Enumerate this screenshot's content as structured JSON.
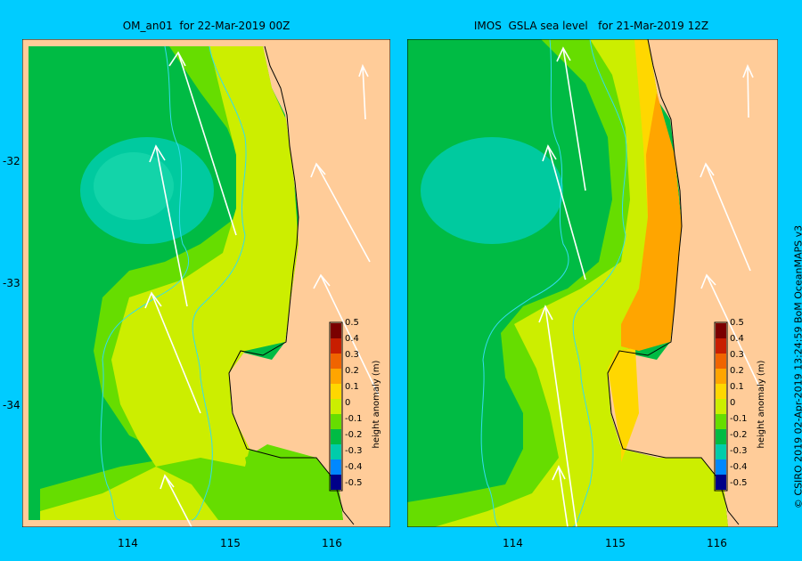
{
  "panels": [
    {
      "title": "OM_an01  for 22-Mar-2019 00Z"
    },
    {
      "title": "IMOS  GSLA sea level   for 21-Mar-2019 12Z"
    }
  ],
  "axes": {
    "y_ticks": [
      "-32",
      "-33",
      "-34"
    ],
    "x_ticks": [
      "114",
      "115",
      "116"
    ]
  },
  "colorbar": {
    "label": "height anomaly (m)",
    "ticks": [
      "0.5",
      "0.4",
      "0.3",
      "0.2",
      "0.1",
      "0",
      "-0.1",
      "-0.2",
      "-0.3",
      "-0.4",
      "-0.5"
    ],
    "colors": [
      "#7a0000",
      "#c81e00",
      "#f06400",
      "#ffa500",
      "#ffd700",
      "#ccee00",
      "#66dd00",
      "#00bb44",
      "#00ccaa",
      "#0088ff",
      "#2233cc",
      "#000088"
    ]
  },
  "credit": "© CSIRO 2019   02-Apr-2019 13:24:59 BoM OceanMAPS v3",
  "colors": {
    "background": "#00ccff",
    "land": "#ffcc99",
    "coast": "#000000",
    "isobath": "#33ddee",
    "vector": "#ffffff"
  }
}
